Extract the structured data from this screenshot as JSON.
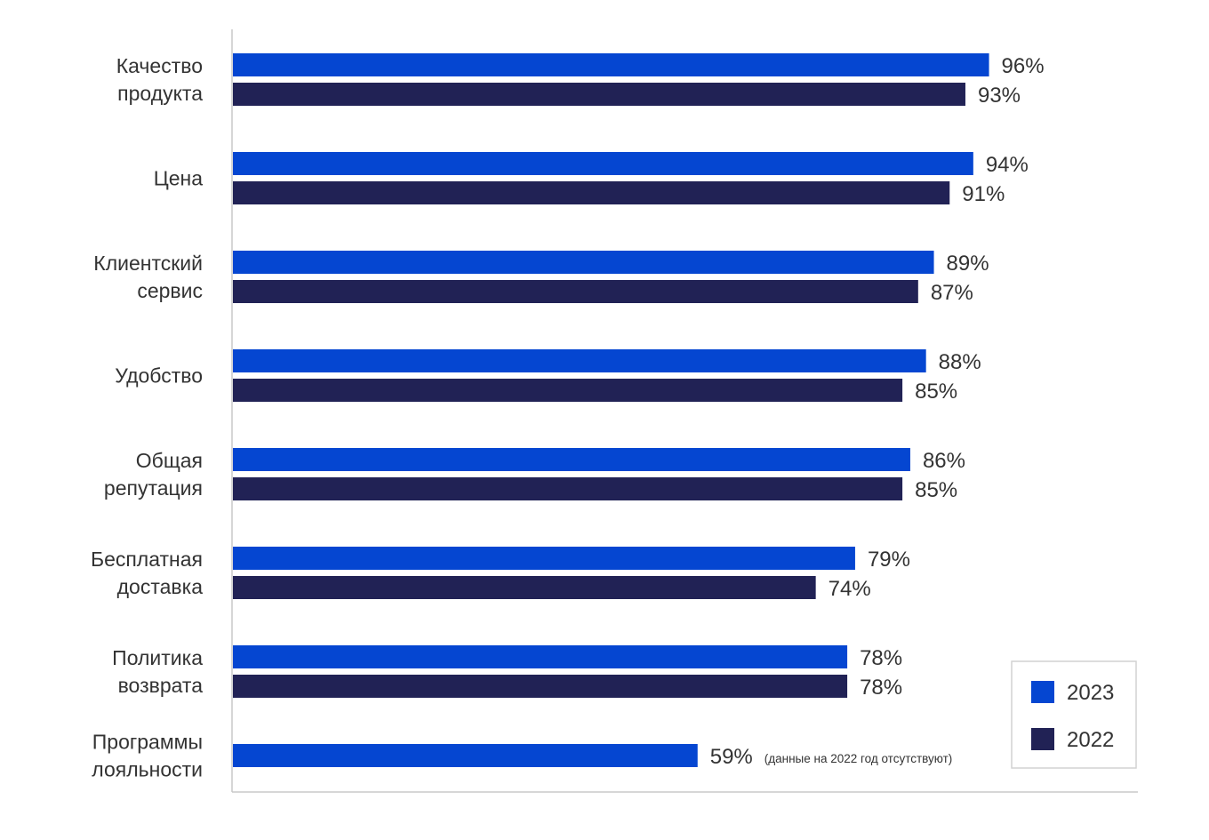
{
  "chart_data": {
    "type": "bar",
    "orientation": "horizontal",
    "title": "",
    "xlabel": "",
    "ylabel": "",
    "xlim": [
      0,
      100
    ],
    "grid": false,
    "legend_position": "bottom-right",
    "categories": [
      [
        "Качество",
        "продукта"
      ],
      [
        "Цена"
      ],
      [
        "Клиентский",
        "сервис"
      ],
      [
        "Удобство"
      ],
      [
        "Общая ",
        "репутация"
      ],
      [
        "Бесплатная",
        "доставка"
      ],
      [
        "Политика",
        "возврата"
      ],
      [
        "Программы",
        "лояльности"
      ]
    ],
    "series": [
      {
        "name": "2023",
        "color": "#0546d1",
        "values": [
          96,
          94,
          89,
          88,
          86,
          79,
          78,
          59
        ],
        "labels": [
          "96%",
          "94%",
          "89%",
          "88%",
          "86%",
          "79%",
          "78%",
          "59%"
        ]
      },
      {
        "name": "2022",
        "color": "#212255",
        "values": [
          93,
          91,
          87,
          85,
          85,
          74,
          78,
          null
        ],
        "labels": [
          "93%",
          "91%",
          "87%",
          "85%",
          "85%",
          "74%",
          "78%",
          null
        ]
      }
    ],
    "annotations": [
      {
        "category_index": 7,
        "series_index": 0,
        "text": "(данные на 2022 год отсутствуют)"
      }
    ],
    "axis_color": "#c8c8c8"
  }
}
